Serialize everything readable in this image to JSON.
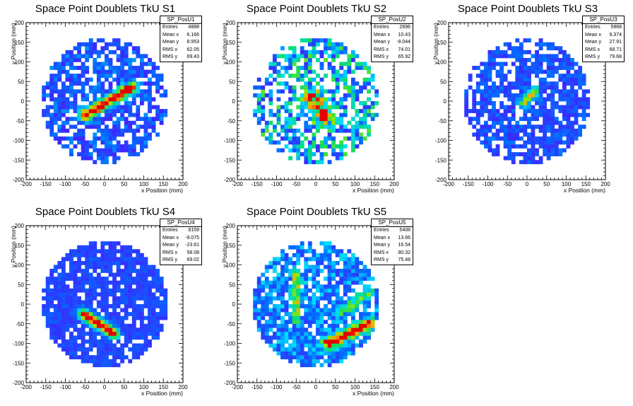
{
  "chart_data": [
    {
      "type": "heatmap",
      "title": "Space Point Doublets TkU S1",
      "xlabel": "x Position (mm)",
      "ylabel": "y Position (mm)",
      "xlim": [
        -200,
        200
      ],
      "ylim": [
        -200,
        200
      ],
      "xticks": [
        "-200",
        "-150",
        "-100",
        "-50",
        "0",
        "50",
        "100",
        "150",
        "200"
      ],
      "yticks": [
        "-200",
        "-150",
        "-100",
        "-50",
        "0",
        "50",
        "100",
        "150",
        "200"
      ],
      "hist_name": "SP_PosU1",
      "stats": [
        [
          "Entries",
          "4888"
        ],
        [
          "Mean x",
          "6.166"
        ],
        [
          "Mean y",
          "8.953"
        ],
        [
          "RMS x",
          "62.05"
        ],
        [
          "RMS y",
          "69.43"
        ]
      ],
      "radius": 160,
      "fill": 0.68,
      "base": 0.18,
      "ridges": [
        {
          "x1": -50,
          "y1": -35,
          "x2": 70,
          "y2": 35,
          "w": 10,
          "amp": 0.8
        }
      ],
      "noise_amp": 0.25,
      "seed": 11
    },
    {
      "type": "heatmap",
      "title": "Space Point Doublets TkU S2",
      "xlabel": "x Position (mm)",
      "ylabel": "y Position (mm)",
      "xlim": [
        -200,
        200
      ],
      "ylim": [
        -200,
        200
      ],
      "xticks": [
        "-200",
        "-150",
        "-100",
        "-50",
        "0",
        "50",
        "100",
        "150",
        "200"
      ],
      "yticks": [
        "-200",
        "-150",
        "-100",
        "-50",
        "0",
        "50",
        "100",
        "150",
        "200"
      ],
      "hist_name": "SP_PosU2",
      "stats": [
        [
          "Entries",
          "2696"
        ],
        [
          "Mean x",
          "10.43"
        ],
        [
          "Mean y",
          "-9.044"
        ],
        [
          "RMS x",
          "74.01"
        ],
        [
          "RMS y",
          "65.92"
        ]
      ],
      "radius": 160,
      "fill": 0.6,
      "base": 0.2,
      "ridges": [
        {
          "x1": -10,
          "y1": 10,
          "x2": 20,
          "y2": -40,
          "w": 14,
          "amp": 0.45
        }
      ],
      "noise_amp": 0.55,
      "seed": 23
    },
    {
      "type": "heatmap",
      "title": "Space Point Doublets TkU S3",
      "xlabel": "x Position (mm)",
      "ylabel": "y Position (mm)",
      "xlim": [
        -200,
        200
      ],
      "ylim": [
        -200,
        200
      ],
      "xticks": [
        "-200",
        "-150",
        "-100",
        "-50",
        "0",
        "50",
        "100",
        "150",
        "200"
      ],
      "yticks": [
        "-200",
        "-150",
        "-100",
        "-50",
        "0",
        "50",
        "100",
        "150",
        "200"
      ],
      "hist_name": "SP_PosU3",
      "stats": [
        [
          "Entries",
          "5868"
        ],
        [
          "Mean x",
          "9.374"
        ],
        [
          "Mean y",
          "27.91"
        ],
        [
          "RMS x",
          "68.71"
        ],
        [
          "RMS y",
          "79.68"
        ]
      ],
      "radius": 160,
      "fill": 0.72,
      "base": 0.2,
      "ridges": [
        {
          "x1": -10,
          "y1": -5,
          "x2": 20,
          "y2": 25,
          "w": 8,
          "amp": 0.55
        }
      ],
      "noise_amp": 0.2,
      "seed": 37
    },
    {
      "type": "heatmap",
      "title": "Space Point Doublets TkU S4",
      "xlabel": "x Position (mm)",
      "ylabel": "y Position (mm)",
      "xlim": [
        -200,
        200
      ],
      "ylim": [
        -200,
        200
      ],
      "xticks": [
        "-200",
        "-150",
        "-100",
        "-50",
        "0",
        "50",
        "100",
        "150",
        "200"
      ],
      "yticks": [
        "-200",
        "-150",
        "-100",
        "-50",
        "0",
        "50",
        "100",
        "150",
        "200"
      ],
      "hist_name": "SP_PosU4",
      "stats": [
        [
          "Entries",
          "8159"
        ],
        [
          "Mean x",
          "-9.075"
        ],
        [
          "Mean y",
          "-23.61"
        ],
        [
          "RMS x",
          "58.08"
        ],
        [
          "RMS y",
          "69.02"
        ]
      ],
      "radius": 160,
      "fill": 0.88,
      "base": 0.22,
      "ridges": [
        {
          "x1": -55,
          "y1": -25,
          "x2": 25,
          "y2": -75,
          "w": 9,
          "amp": 0.85
        }
      ],
      "noise_amp": 0.12,
      "seed": 41
    },
    {
      "type": "heatmap",
      "title": "Space Point Doublets TkU S5",
      "xlabel": "x Position (mm)",
      "ylabel": "y Position (mm)",
      "xlim": [
        -200,
        200
      ],
      "ylim": [
        -200,
        200
      ],
      "xticks": [
        "-200",
        "-150",
        "-100",
        "-50",
        "0",
        "50",
        "100",
        "150",
        "200"
      ],
      "yticks": [
        "-200",
        "-150",
        "-100",
        "-50",
        "0",
        "50",
        "100",
        "150",
        "200"
      ],
      "hist_name": "SP_PosU5",
      "stats": [
        [
          "Entries",
          "5408"
        ],
        [
          "Mean x",
          "13.66"
        ],
        [
          "Mean y",
          "16.54"
        ],
        [
          "RMS x",
          "80.32"
        ],
        [
          "RMS y",
          "75.48"
        ]
      ],
      "radius": 160,
      "fill": 0.78,
      "base": 0.24,
      "ridges": [
        {
          "x1": 30,
          "y1": -100,
          "x2": 140,
          "y2": -50,
          "w": 10,
          "amp": 0.7
        },
        {
          "x1": -50,
          "y1": 80,
          "x2": -50,
          "y2": -40,
          "w": 7,
          "amp": 0.45
        },
        {
          "x1": 60,
          "y1": -20,
          "x2": 140,
          "y2": 30,
          "w": 9,
          "amp": 0.3
        }
      ],
      "noise_amp": 0.3,
      "seed": 53
    }
  ]
}
